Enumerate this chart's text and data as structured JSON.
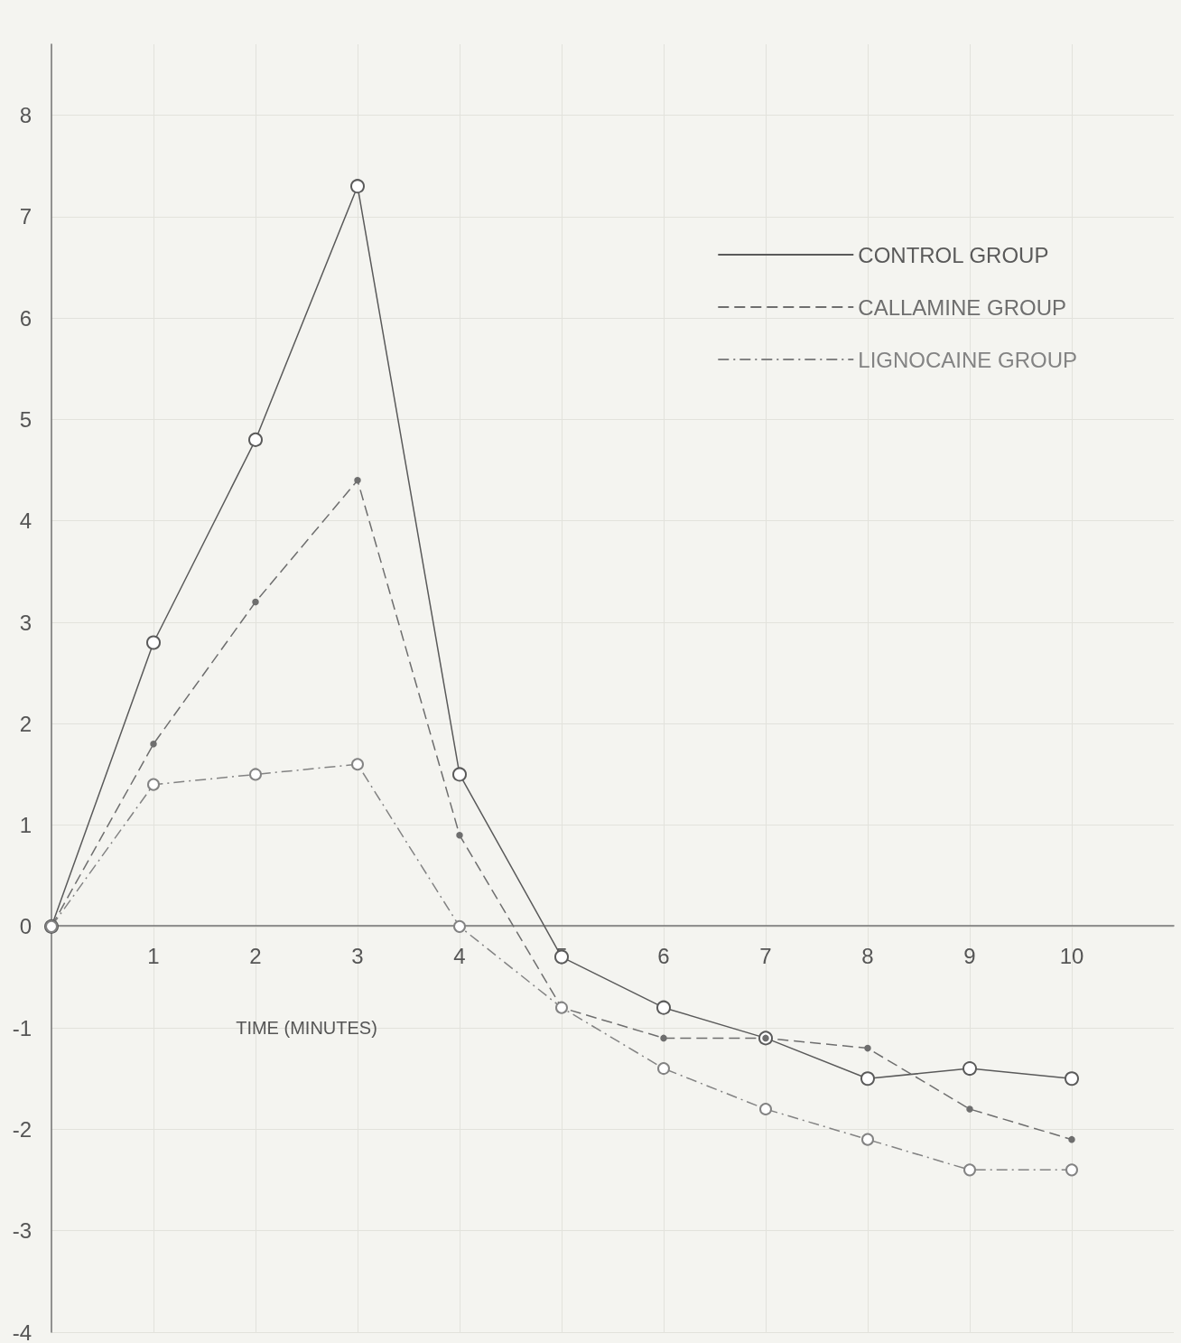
{
  "chart_data": {
    "type": "line",
    "xlabel": "TIME (MINUTES)",
    "x": [
      0,
      1,
      2,
      3,
      4,
      5,
      6,
      7,
      8,
      9,
      10
    ],
    "series": [
      {
        "name": "CONTROL GROUP",
        "color": "#5a5a5a",
        "line_style": "solid",
        "marker": "circle",
        "values": [
          0,
          2.8,
          4.8,
          7.3,
          1.5,
          -0.3,
          -0.8,
          -1.1,
          -1.5,
          -1.4,
          -1.5
        ]
      },
      {
        "name": "CALLAMINE GROUP",
        "color": "#6e6e6e",
        "line_style": "dashed",
        "marker": "circle",
        "values": [
          0,
          1.8,
          3.2,
          4.4,
          0.9,
          -0.8,
          -1.1,
          -1.1,
          -1.2,
          -1.8,
          -2.1
        ]
      },
      {
        "name": "LIGNOCAINE GROUP",
        "color": "#838383",
        "line_style": "dashdot",
        "marker": "circle",
        "values": [
          0,
          1.4,
          1.5,
          1.6,
          0,
          -0.8,
          -1.4,
          -1.8,
          -2.1,
          -2.4,
          -2.4
        ]
      }
    ],
    "xlim": [
      0,
      11
    ],
    "xticks": [
      1,
      2,
      3,
      4,
      5,
      6,
      7,
      8,
      9,
      10
    ],
    "ylim": [
      -4,
      8.7
    ],
    "yticks": [
      -4,
      -3,
      -2,
      -1,
      0,
      1,
      2,
      3,
      4,
      5,
      6,
      7,
      8
    ],
    "legend": "top right",
    "grid": true
  }
}
